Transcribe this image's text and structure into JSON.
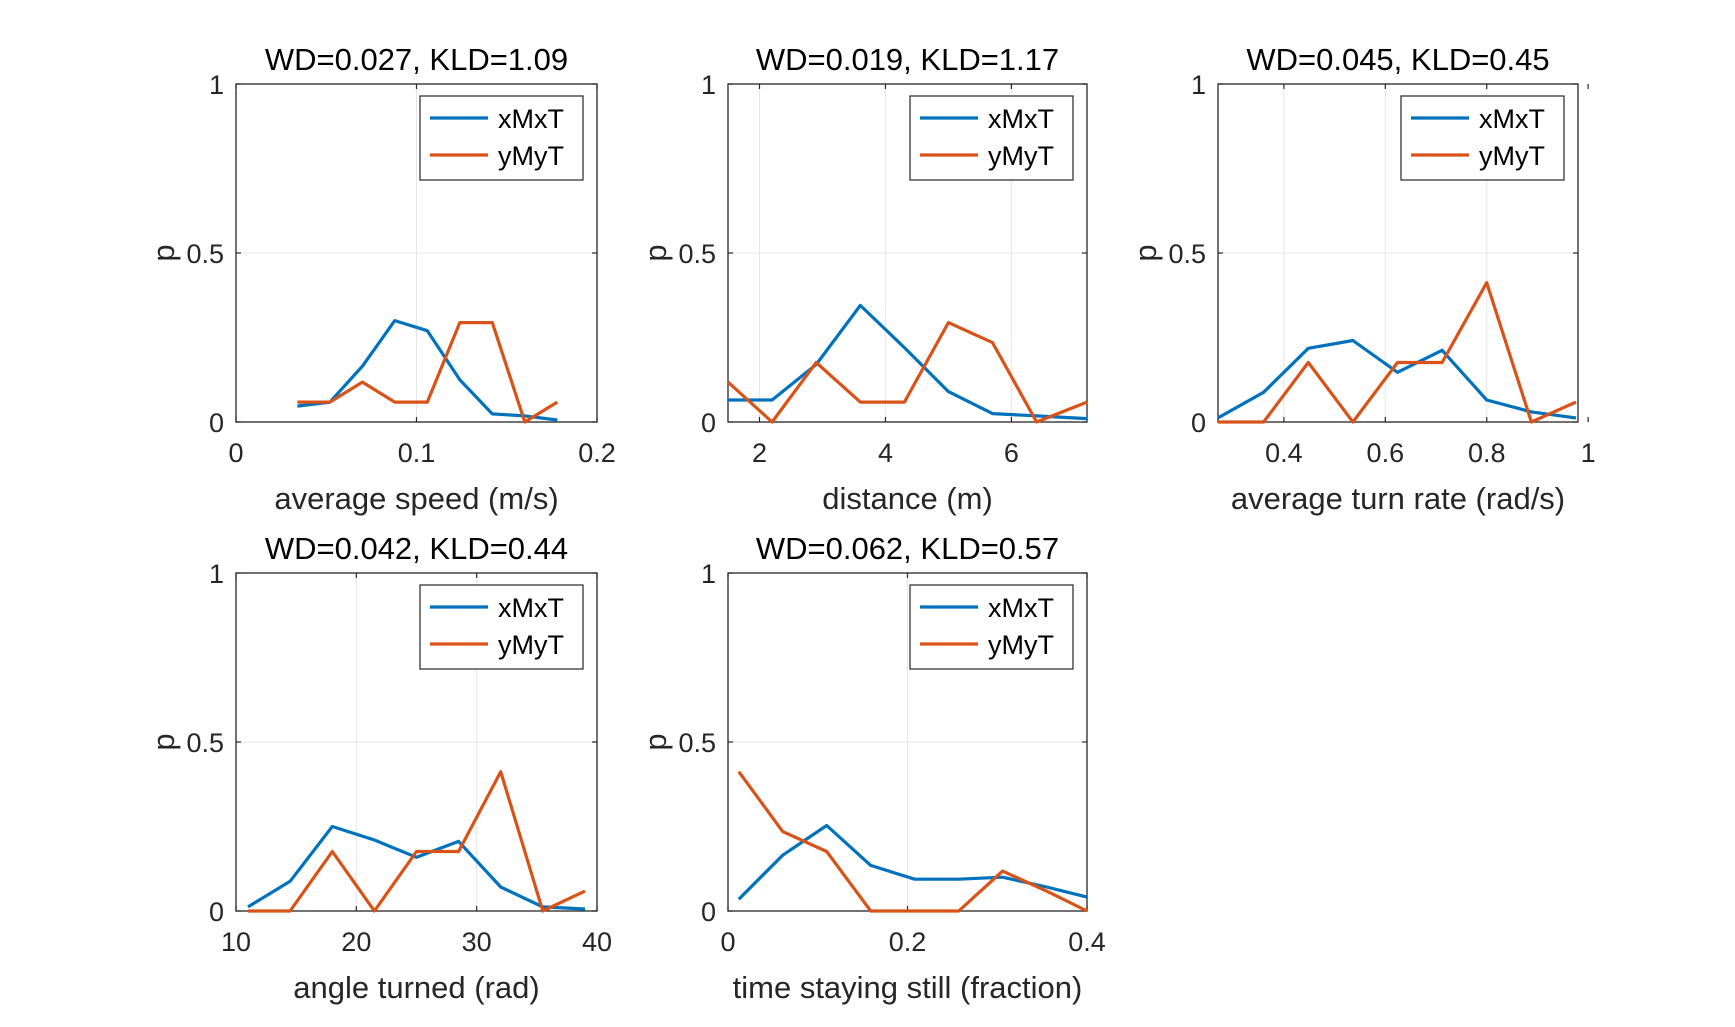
{
  "colors": {
    "xMxT": "#0072BD",
    "yMyT": "#D95319",
    "grid": "#e6e6e6",
    "axes": "#262626"
  },
  "chart_data": [
    {
      "type": "line",
      "title": "WD=0.027, KLD=1.09",
      "xlabel": "average speed (m/s)",
      "ylabel": "p",
      "xlim": [
        0,
        0.2
      ],
      "ylim": [
        0,
        1
      ],
      "xticks": [
        0,
        0.1,
        0.2
      ],
      "xtick_labels": [
        "0",
        "0.1",
        "0.2"
      ],
      "yticks": [
        0,
        0.5,
        1
      ],
      "ytick_labels": [
        "0",
        "0.5",
        "1"
      ],
      "grid": true,
      "legend": "top-right",
      "series": [
        {
          "name": "xMxT",
          "x": [
            0.034,
            0.052,
            0.07,
            0.088,
            0.106,
            0.124,
            0.142,
            0.16,
            0.178
          ],
          "y": [
            0.047,
            0.059,
            0.165,
            0.3,
            0.27,
            0.125,
            0.024,
            0.018,
            0.006
          ]
        },
        {
          "name": "yMyT",
          "x": [
            0.034,
            0.052,
            0.07,
            0.088,
            0.106,
            0.124,
            0.142,
            0.16,
            0.178
          ],
          "y": [
            0.059,
            0.059,
            0.118,
            0.059,
            0.059,
            0.294,
            0.294,
            0,
            0.059
          ]
        }
      ]
    },
    {
      "type": "line",
      "title": "WD=0.019, KLD=1.17",
      "xlabel": "distance (m)",
      "ylabel": "p",
      "xlim": [
        1.5,
        7.2
      ],
      "ylim": [
        0,
        1
      ],
      "xticks": [
        2,
        4,
        6
      ],
      "xtick_labels": [
        "2",
        "4",
        "6"
      ],
      "yticks": [
        0,
        0.5,
        1
      ],
      "ytick_labels": [
        "0",
        "0.5",
        "1"
      ],
      "grid": true,
      "legend": "top-right",
      "series": [
        {
          "name": "xMxT",
          "x": [
            1.5,
            2.2,
            2.9,
            3.6,
            4.3,
            5.0,
            5.7,
            6.4,
            7.2
          ],
          "y": [
            0.065,
            0.065,
            0.17,
            0.345,
            0.22,
            0.09,
            0.025,
            0.018,
            0.01
          ]
        },
        {
          "name": "yMyT",
          "x": [
            1.5,
            2.2,
            2.9,
            3.6,
            4.3,
            5.0,
            5.7,
            6.4,
            7.2
          ],
          "y": [
            0.118,
            0,
            0.176,
            0.059,
            0.059,
            0.294,
            0.235,
            0,
            0.059
          ]
        }
      ]
    },
    {
      "type": "line",
      "title": "WD=0.045, KLD=0.45",
      "xlabel": "average turn rate (rad/s)",
      "ylabel": "p",
      "xlim": [
        0.27,
        0.98
      ],
      "ylim": [
        0,
        1
      ],
      "xticks": [
        0.4,
        0.6,
        0.8,
        1
      ],
      "xtick_labels": [
        "0.4",
        "0.6",
        "0.8",
        "1"
      ],
      "yticks": [
        0,
        0.5,
        1
      ],
      "ytick_labels": [
        "0",
        "0.5",
        "1"
      ],
      "grid": true,
      "legend": "top-right",
      "series": [
        {
          "name": "xMxT",
          "x": [
            0.27,
            0.36,
            0.448,
            0.536,
            0.624,
            0.712,
            0.8,
            0.888,
            0.976
          ],
          "y": [
            0.012,
            0.088,
            0.218,
            0.241,
            0.147,
            0.212,
            0.065,
            0.03,
            0.012
          ]
        },
        {
          "name": "yMyT",
          "x": [
            0.27,
            0.36,
            0.448,
            0.536,
            0.624,
            0.712,
            0.8,
            0.888,
            0.976
          ],
          "y": [
            0,
            0,
            0.176,
            0,
            0.176,
            0.176,
            0.412,
            0,
            0.059
          ]
        }
      ]
    },
    {
      "type": "line",
      "title": "WD=0.042, KLD=0.44",
      "xlabel": "angle turned (rad)",
      "ylabel": "p",
      "xlim": [
        10,
        40
      ],
      "ylim": [
        0,
        1
      ],
      "xticks": [
        10,
        20,
        30,
        40
      ],
      "xtick_labels": [
        "10",
        "20",
        "30",
        "40"
      ],
      "yticks": [
        0,
        0.5,
        1
      ],
      "ytick_labels": [
        "0",
        "0.5",
        "1"
      ],
      "grid": true,
      "legend": "top-right",
      "series": [
        {
          "name": "xMxT",
          "x": [
            11,
            14.5,
            18,
            21.5,
            25,
            28.5,
            32,
            35.5,
            39
          ],
          "y": [
            0.012,
            0.088,
            0.25,
            0.21,
            0.159,
            0.206,
            0.071,
            0.012,
            0.006
          ]
        },
        {
          "name": "yMyT",
          "x": [
            11,
            14.5,
            18,
            21.5,
            25,
            28.5,
            32,
            35.5,
            39
          ],
          "y": [
            0,
            0,
            0.176,
            0,
            0.176,
            0.176,
            0.412,
            0,
            0.059
          ]
        }
      ]
    },
    {
      "type": "line",
      "title": "WD=0.062, KLD=0.57",
      "xlabel": "time staying still (fraction)",
      "ylabel": "p",
      "xlim": [
        0,
        0.4
      ],
      "ylim": [
        0,
        1
      ],
      "xticks": [
        0,
        0.2,
        0.4
      ],
      "xtick_labels": [
        "0",
        "0.2",
        "0.4"
      ],
      "yticks": [
        0,
        0.5,
        1
      ],
      "ytick_labels": [
        "0",
        "0.5",
        "1"
      ],
      "grid": true,
      "legend": "top-right",
      "series": [
        {
          "name": "xMxT",
          "x": [
            0.012,
            0.061,
            0.11,
            0.159,
            0.208,
            0.257,
            0.306,
            0.355,
            0.4
          ],
          "y": [
            0.035,
            0.165,
            0.253,
            0.135,
            0.094,
            0.094,
            0.1,
            0.071,
            0.041
          ]
        },
        {
          "name": "yMyT",
          "x": [
            0.012,
            0.061,
            0.11,
            0.159,
            0.208,
            0.257,
            0.306,
            0.355,
            0.4
          ],
          "y": [
            0.412,
            0.235,
            0.176,
            0,
            0,
            0,
            0.118,
            0.059,
            0
          ]
        }
      ]
    }
  ]
}
